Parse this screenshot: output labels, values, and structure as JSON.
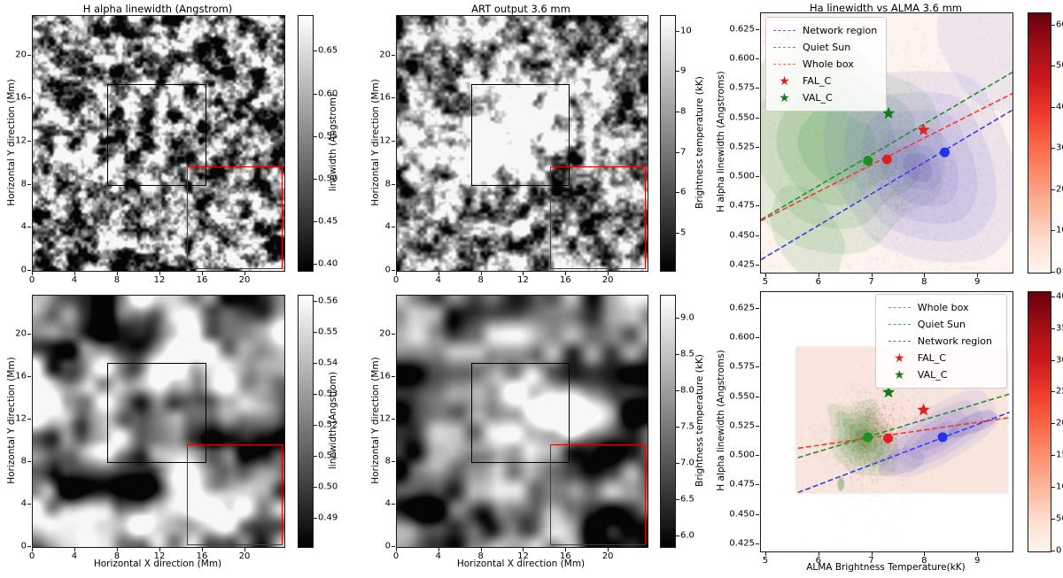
{
  "overlay_boxes": {
    "black_box": {
      "color": "#000000",
      "x": [
        7.0,
        16.35
      ],
      "y": [
        7.9,
        17.35
      ]
    },
    "red_box": {
      "color": "#dd0000",
      "x": [
        14.5,
        23.5
      ],
      "y": [
        0.15,
        9.7
      ]
    }
  },
  "chart_data": [
    {
      "id": "halpha_map",
      "type": "heatmap",
      "title": "H alpha linewidth (Angstrom)",
      "xlabel": "",
      "ylabel": "Horizontal Y direction (Mm)",
      "xlim": [
        0,
        23.67
      ],
      "ylim": [
        0,
        23.67
      ],
      "xticks": [
        "0",
        "4",
        "8",
        "12",
        "16",
        "20"
      ],
      "yticks": [
        "0",
        "4",
        "8",
        "12",
        "16",
        "20"
      ],
      "colormap": "gray",
      "colorbar": {
        "label": "linewidth (Angstrom)",
        "min": 0.393,
        "max": 0.692,
        "ticks": [
          "0.40",
          "0.45",
          "0.50",
          "0.55",
          "0.60",
          "0.65"
        ]
      }
    },
    {
      "id": "art_map",
      "type": "heatmap",
      "title": "ART output 3.6 mm",
      "xlabel": "",
      "ylabel": "Horizontal Y direction (Mm)",
      "xlim": [
        0,
        23.67
      ],
      "ylim": [
        0,
        23.67
      ],
      "xticks": [
        "0",
        "4",
        "8",
        "12",
        "16",
        "20"
      ],
      "yticks": [
        "0",
        "4",
        "8",
        "12",
        "16",
        "20"
      ],
      "colormap": "gray",
      "colorbar": {
        "label": "Brightness temperature (kK)",
        "min": 4.08,
        "max": 10.39,
        "ticks": [
          "5",
          "6",
          "7",
          "8",
          "9",
          "10"
        ]
      }
    },
    {
      "id": "scatter_top",
      "type": "scatter",
      "title": "Ha linewidth vs ALMA 3.6 mm",
      "xlabel": "",
      "ylabel": "H alpha linewidth (Angstroms)",
      "xlim": [
        4.9,
        9.65
      ],
      "ylim": [
        0.419,
        0.639
      ],
      "xticks": [
        "5",
        "6",
        "7",
        "8",
        "9"
      ],
      "yticks": [
        "0.425",
        "0.450",
        "0.475",
        "0.500",
        "0.525",
        "0.550",
        "0.575",
        "0.600",
        "0.625"
      ],
      "legend": {
        "position": "upper-left",
        "entries": [
          {
            "label": "Network region",
            "type": "dashed-line",
            "color": "#3b3bef"
          },
          {
            "label": "Quiet Sun",
            "type": "dashed-line",
            "color": "#2e8b2e"
          },
          {
            "label": "Whole box",
            "type": "dashed-line",
            "color": "#ef3b30"
          },
          {
            "label": "FAL_C",
            "type": "star",
            "color": "#e02020"
          },
          {
            "label": "VAL_C",
            "type": "star",
            "color": "#157a15"
          }
        ]
      },
      "fit_lines": [
        {
          "name": "Network region",
          "color": "#3b3bef",
          "x": [
            4.9,
            9.65
          ],
          "y": [
            0.43,
            0.557
          ]
        },
        {
          "name": "Quiet Sun",
          "color": "#2e8b2e",
          "x": [
            4.9,
            9.65
          ],
          "y": [
            0.464,
            0.589
          ]
        },
        {
          "name": "Whole box",
          "color": "#ef3b30",
          "x": [
            4.9,
            9.65
          ],
          "y": [
            0.463,
            0.571
          ]
        }
      ],
      "markers": [
        {
          "name": "VAL_C",
          "shape": "star",
          "color": "#157a15",
          "x": 7.31,
          "y": 0.554
        },
        {
          "name": "FAL_C",
          "shape": "star",
          "color": "#e02020",
          "x": 7.97,
          "y": 0.54
        },
        {
          "name": "Quiet Sun mean",
          "shape": "circle",
          "color": "#1f8f1f",
          "x": 6.92,
          "y": 0.514
        },
        {
          "name": "Whole box mean",
          "shape": "circle",
          "color": "#e02020",
          "x": 7.28,
          "y": 0.515
        },
        {
          "name": "Network region mean",
          "shape": "circle",
          "color": "#2233ee",
          "x": 8.37,
          "y": 0.521
        }
      ],
      "colorbar": {
        "label": "",
        "colormap": "Reds",
        "min": 0,
        "max": 63,
        "ticks": [
          "0",
          "10",
          "20",
          "30",
          "40",
          "50",
          "60"
        ]
      },
      "distributions": {
        "whole_box_hist": {
          "style": "speckle",
          "color": "#c24a2e",
          "center": [
            7.5,
            0.505
          ],
          "sigma": [
            1.05,
            0.048
          ]
        },
        "quiet_sun_kde": {
          "style": "filled-contours",
          "color": "#56a056",
          "center": [
            6.35,
            0.527
          ],
          "rx": 1.35,
          "ry": 0.075,
          "tilt": 0.027
        },
        "network_kde": {
          "style": "filled-contours",
          "color": "#6f63cc",
          "center": [
            7.85,
            0.508
          ],
          "rx": 1.3,
          "ry": 0.068,
          "tilt": 0.024
        }
      }
    },
    {
      "id": "halpha_smooth_map",
      "type": "heatmap",
      "title": "",
      "xlabel": "Horizontal X direction (Mm)",
      "ylabel": "Horizontal Y direction (Mm)",
      "xlim": [
        0,
        23.67
      ],
      "ylim": [
        0,
        23.67
      ],
      "xticks": [
        "0",
        "4",
        "8",
        "12",
        "16",
        "20"
      ],
      "yticks": [
        "0",
        "4",
        "8",
        "12",
        "16",
        "20"
      ],
      "colormap": "gray",
      "colorbar": {
        "label": "linewidth (Angstrom)",
        "min": 0.481,
        "max": 0.562,
        "ticks": [
          "0.49",
          "0.50",
          "0.51",
          "0.52",
          "0.53",
          "0.54",
          "0.55",
          "0.56"
        ]
      }
    },
    {
      "id": "art_smooth_map",
      "type": "heatmap",
      "title": "",
      "xlabel": "Horizontal X direction (Mm)",
      "ylabel": "Horizontal Y direction (Mm)",
      "xlim": [
        0,
        23.67
      ],
      "ylim": [
        0,
        23.67
      ],
      "xticks": [
        "0",
        "4",
        "8",
        "12",
        "16",
        "20"
      ],
      "yticks": [
        "0",
        "4",
        "8",
        "12",
        "16",
        "20"
      ],
      "colormap": "gray",
      "colorbar": {
        "label": "Brightness temperature (kK)",
        "min": 5.85,
        "max": 9.32,
        "ticks": [
          "6.0",
          "6.5",
          "7.0",
          "7.5",
          "8.0",
          "8.5",
          "9.0"
        ]
      }
    },
    {
      "id": "scatter_bottom",
      "type": "scatter",
      "title": "",
      "xlabel": "ALMA Brightness Temperature(kK)",
      "ylabel": "H alpha linewidth (Angstroms)",
      "xlim": [
        4.9,
        9.65
      ],
      "ylim": [
        0.419,
        0.639
      ],
      "xticks": [
        "5",
        "6",
        "7",
        "8",
        "9"
      ],
      "yticks": [
        "0.425",
        "0.450",
        "0.475",
        "0.500",
        "0.525",
        "0.550",
        "0.575",
        "0.600",
        "0.625"
      ],
      "legend": {
        "position": "upper-right",
        "entries": [
          {
            "label": "Whole box",
            "type": "dashed-line",
            "color": "#ef3b30"
          },
          {
            "label": "Quiet Sun",
            "type": "dashed-line",
            "color": "#2e8b2e"
          },
          {
            "label": "Network region",
            "type": "dashed-line",
            "color": "#3b3bef"
          },
          {
            "label": "FAL_C",
            "type": "star",
            "color": "#e02020"
          },
          {
            "label": "VAL_C",
            "type": "star",
            "color": "#157a15"
          }
        ]
      },
      "fit_lines": [
        {
          "name": "Whole box",
          "color": "#ef3b30",
          "x": [
            5.6,
            9.59
          ],
          "y": [
            0.5065,
            0.5325
          ]
        },
        {
          "name": "Quiet Sun",
          "color": "#2e8b2e",
          "x": [
            5.6,
            9.59
          ],
          "y": [
            0.4985,
            0.5525
          ]
        },
        {
          "name": "Network region",
          "color": "#3b3bef",
          "x": [
            5.6,
            9.59
          ],
          "y": [
            0.469,
            0.537
          ]
        }
      ],
      "markers": [
        {
          "name": "VAL_C",
          "shape": "star",
          "color": "#157a15",
          "x": 7.31,
          "y": 0.554
        },
        {
          "name": "FAL_C",
          "shape": "star",
          "color": "#e02020",
          "x": 7.97,
          "y": 0.539
        },
        {
          "name": "Quiet Sun mean",
          "shape": "circle",
          "color": "#1f8f1f",
          "x": 6.92,
          "y": 0.516
        },
        {
          "name": "Whole box mean",
          "shape": "circle",
          "color": "#e02020",
          "x": 7.3,
          "y": 0.515
        },
        {
          "name": "Network region mean",
          "shape": "circle",
          "color": "#2233ee",
          "x": 8.33,
          "y": 0.516
        }
      ],
      "colorbar": {
        "label": "",
        "colormap": "Reds",
        "min": 0,
        "max": 408,
        "ticks": [
          "0",
          "50",
          "100",
          "150",
          "200",
          "250",
          "300",
          "350",
          "400"
        ]
      },
      "distributions": {
        "extent_rect": {
          "style": "rect",
          "color": "#f7e0d8",
          "x": [
            5.55,
            9.57
          ],
          "y": [
            0.468,
            0.593
          ]
        },
        "whole_box_hist": {
          "style": "speckle",
          "color": "#a02010",
          "center": [
            7.0,
            0.517
          ],
          "sigma": [
            0.33,
            0.016
          ]
        },
        "quiet_sun_kde": {
          "style": "filled-contours",
          "color": "#55a055",
          "center": [
            6.83,
            0.5155
          ],
          "rx": 0.52,
          "ry": 0.03,
          "tilt": 0.012
        },
        "network_kde": {
          "style": "filled-contours",
          "color": "#6f63c8",
          "center": [
            8.2,
            0.516
          ],
          "rx": 1.15,
          "ry": 0.021,
          "tilt": 0.0205
        }
      }
    }
  ]
}
